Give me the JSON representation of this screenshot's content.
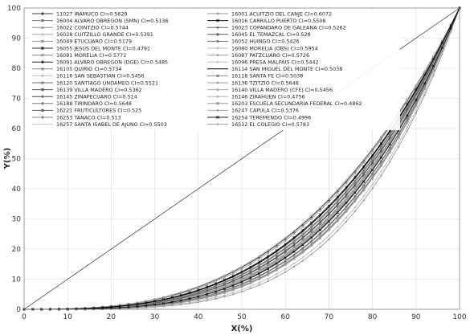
{
  "chart_data": {
    "type": "line",
    "xlabel": "X(%)",
    "ylabel": "Y(%)",
    "xlim": [
      0,
      100
    ],
    "ylim": [
      0,
      100
    ],
    "x_ticks": [
      "0",
      "10",
      "20",
      "30",
      "40",
      "50",
      "60",
      "70",
      "80",
      "90",
      "100"
    ],
    "y_ticks": [
      "0",
      "10",
      "20",
      "30",
      "40",
      "50",
      "60",
      "70",
      "80",
      "90",
      "100"
    ],
    "grid": true,
    "legend_placement": "top-left",
    "series": [
      {
        "name": "11027  IRAMUCO CI=0.5629",
        "ci": 0.5629,
        "color": "#444444",
        "marker": "diamond"
      },
      {
        "name": "16001  ACUITZIO DEL CANJE CI=0.6072",
        "ci": 0.6072,
        "color": "#9a9a9a",
        "marker": "circle"
      },
      {
        "name": "16004  ALVARO OBREGON (SMN) CI=0.5136",
        "ci": 0.5136,
        "color": "#777777",
        "marker": "square"
      },
      {
        "name": "16016  CARRILLO PUERTO CI=0.5508",
        "ci": 0.5508,
        "color": "#111111",
        "marker": "x"
      },
      {
        "name": "16022  COINTZIO CI=0.5744",
        "ci": 0.5744,
        "color": "#8c8c8c",
        "marker": "triangle"
      },
      {
        "name": "16023  COPANDARO DE GALEANA CI=0.5262",
        "ci": 0.5262,
        "color": "#666666",
        "marker": "circle"
      },
      {
        "name": "16028  CUITZILLO GRANDE  CI=0.5391",
        "ci": 0.5391,
        "color": "#aaaaaa",
        "marker": "plus"
      },
      {
        "name": "16045  EL TEMAZCAL  CI=0.528",
        "ci": 0.528,
        "color": "#555555",
        "marker": "diamond"
      },
      {
        "name": "16049  ETUCUARO CI=0.5179",
        "ci": 0.5179,
        "color": "#999999",
        "marker": "square"
      },
      {
        "name": "16052  HUINGO CI=0.5426",
        "ci": 0.5426,
        "color": "#777777",
        "marker": "diamond"
      },
      {
        "name": "16055  JESUS DEL MONTE CI=0.4791",
        "ci": 0.4791,
        "color": "#333333",
        "marker": "square"
      },
      {
        "name": "16080  MORELIA (OBS)  CI=0.5954",
        "ci": 0.5954,
        "color": "#bbbbbb",
        "marker": "circle"
      },
      {
        "name": "16081  MORELIA CI=0.5772",
        "ci": 0.5772,
        "color": "#888888",
        "marker": "x"
      },
      {
        "name": "16087  PATZCUARO CI=0.5726",
        "ci": 0.5726,
        "color": "#a0a0a0",
        "marker": "circle"
      },
      {
        "name": "16091  ALVARO OBREGON (DGE)  CI=0.5485",
        "ci": 0.5485,
        "color": "#222222",
        "marker": "diamond"
      },
      {
        "name": "16096  PRESA MALPAIS CI=0.5442",
        "ci": 0.5442,
        "color": "#c4c4c4",
        "marker": "circle"
      },
      {
        "name": "16105  QUIRIO  CI=0.5734",
        "ci": 0.5734,
        "color": "#909090",
        "marker": "square"
      },
      {
        "name": "16114  SAN MIGUEL DEL MONTE CI=0.5038",
        "ci": 0.5038,
        "color": "#000000",
        "marker": "none"
      },
      {
        "name": "16116  SAN SEBASTIAN  CI=0.5456",
        "ci": 0.5456,
        "color": "#bdbdbd",
        "marker": "diamond"
      },
      {
        "name": "16118  SANTA FE CI=0.5038",
        "ci": 0.5038,
        "color": "#8a8a8a",
        "marker": "square"
      },
      {
        "name": "16120  SANTIAGO UNDAMEO CI=0.5521",
        "ci": 0.5521,
        "color": "#6e6e6e",
        "marker": "x"
      },
      {
        "name": "16136  TZITZIO CI=0.5648",
        "ci": 0.5648,
        "color": "#9e9e9e",
        "marker": "circle"
      },
      {
        "name": "16139  VILLA MADERO CI=0.5362",
        "ci": 0.5362,
        "color": "#5a5a5a",
        "marker": "square"
      },
      {
        "name": "16140  VILLA MADERO (CFE)  CI=0.5456",
        "ci": 0.5456,
        "color": "#aaaaaa",
        "marker": "diamond"
      },
      {
        "name": "16145  ZINAPECUARO CI=0.514",
        "ci": 0.514,
        "color": "#444444",
        "marker": "plus"
      },
      {
        "name": "16146  ZIRAHUEN  CI=0.4756",
        "ci": 0.4756,
        "color": "#b0b0b0",
        "marker": "circle"
      },
      {
        "name": "16188  TIRINDARO CI=0.5648",
        "ci": 0.5648,
        "color": "#7a7a7a",
        "marker": "diamond"
      },
      {
        "name": "16203  ESCUELA SECUNDARIA FEDERAL CI=0.4862",
        "ci": 0.4862,
        "color": "#999999",
        "marker": "square"
      },
      {
        "name": "16221  FRUTICULTORES CI=0.525",
        "ci": 0.525,
        "color": "#606060",
        "marker": "square"
      },
      {
        "name": "16247  CAPULA CI=0.5376",
        "ci": 0.5376,
        "color": "#a8a8a8",
        "marker": "circle"
      },
      {
        "name": "16253  TANACO CI=0.513",
        "ci": 0.513,
        "color": "#858585",
        "marker": "diamond"
      },
      {
        "name": "16254  TEREMENDO CI=0.4996",
        "ci": 0.4996,
        "color": "#1a1a1a",
        "marker": "x"
      },
      {
        "name": "16257  SANTA ISABEL DE AJUNO CI=0.5503",
        "ci": 0.5503,
        "color": "#c8c8c8",
        "marker": "none"
      },
      {
        "name": "16512  EL COLEGIO CI=0.5783",
        "ci": 0.5783,
        "color": "#9c9c9c",
        "marker": "plus"
      }
    ]
  }
}
